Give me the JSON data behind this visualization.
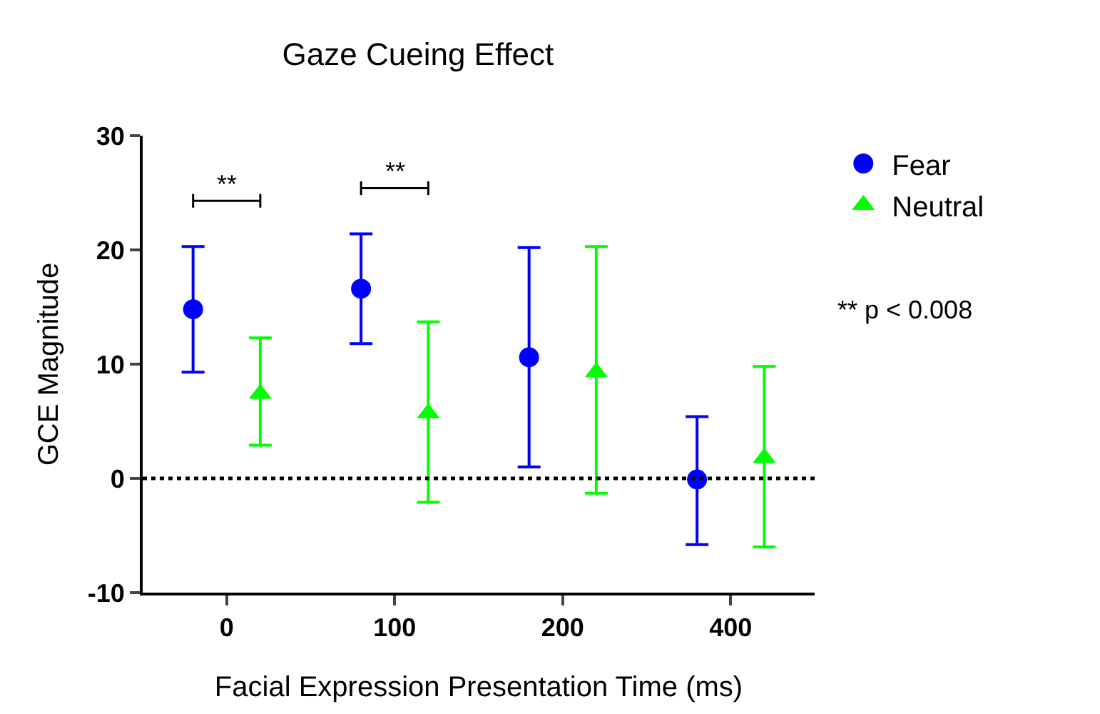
{
  "chart_data": {
    "type": "scatter",
    "title": "Gaze Cueing Effect",
    "xlabel": "Facial Expression Presentation Time (ms)",
    "ylabel": "GCE Magnitude",
    "categories": [
      "0",
      "100",
      "200",
      "400"
    ],
    "series": [
      {
        "name": "Fear",
        "color": "#0000ff",
        "marker": "circle",
        "values": [
          14.8,
          16.6,
          10.6,
          -0.1
        ],
        "errors": [
          [
            9.3,
            20.3
          ],
          [
            11.8,
            21.4
          ],
          [
            1.0,
            20.2
          ],
          [
            -5.8,
            5.4
          ]
        ]
      },
      {
        "name": "Neutral",
        "color": "#00ff00",
        "marker": "triangle",
        "values": [
          7.4,
          5.7,
          9.3,
          1.8
        ],
        "errors": [
          [
            2.9,
            12.3
          ],
          [
            -2.1,
            13.7
          ],
          [
            -1.3,
            20.3
          ],
          [
            -6.0,
            9.8
          ]
        ]
      }
    ],
    "ylim": [
      -10,
      30
    ],
    "yticks": [
      -10,
      0,
      10,
      20,
      30
    ],
    "legend": "top right",
    "ref_lines": [
      {
        "axis": "y",
        "value": 0,
        "line_style": "dotted",
        "color": "#000000"
      }
    ],
    "annotations": [
      "**",
      "**",
      "** p < 0.008"
    ]
  }
}
